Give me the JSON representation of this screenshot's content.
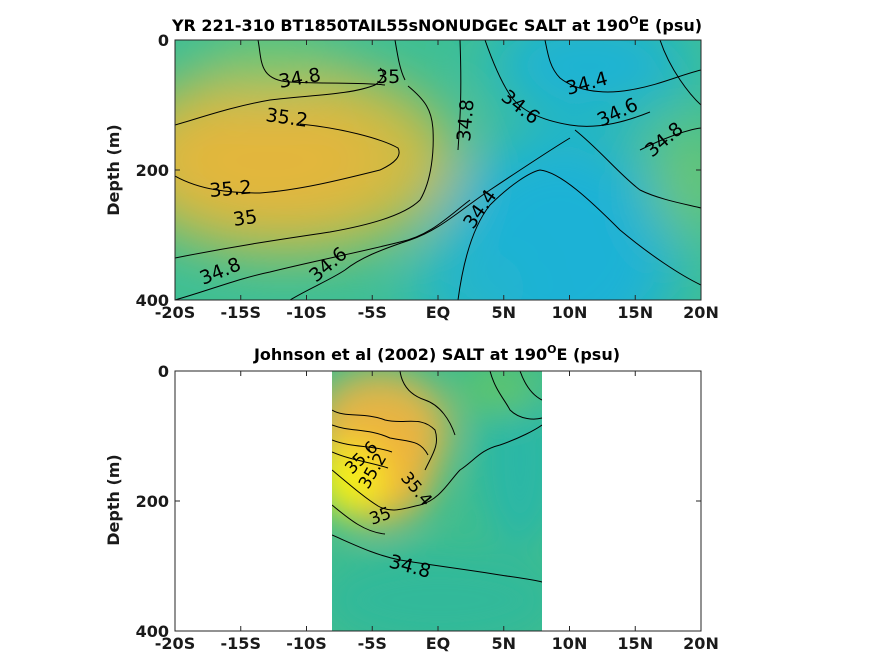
{
  "chart_data": [
    {
      "type": "contour",
      "title": "YR 221-310 BT1850TAIL55sNONUDGEc SALT at 190",
      "title_superscript": "O",
      "title_suffix": "E (psu)",
      "ylabel": "Depth (m)",
      "xlim": [
        -20,
        20
      ],
      "ylim": [
        400,
        0
      ],
      "xticks": [
        "-20S",
        "-15S",
        "-10S",
        "-5S",
        "EQ",
        "5N",
        "10N",
        "15N",
        "20N"
      ],
      "yticks": [
        "0",
        "200",
        "400"
      ],
      "contour_labels": [
        "34.8",
        "35",
        "35.2",
        "34.8",
        "34.6",
        "34.4",
        "34.6",
        "34.8",
        "35.2",
        "35",
        "34.8",
        "34.6",
        "34.4"
      ],
      "colors": {
        "low": "#1ab2dc",
        "mid": "#3dc08a",
        "high": "#e6b83a"
      }
    },
    {
      "type": "contour",
      "title": "Johnson et al (2002) SALT at 190",
      "title_superscript": "O",
      "title_suffix": "E (psu)",
      "ylabel": "Depth (m)",
      "xlim": [
        -20,
        20
      ],
      "ylim": [
        400,
        0
      ],
      "data_xrange": [
        -8,
        8
      ],
      "xticks": [
        "-20S",
        "-15S",
        "-10S",
        "-5S",
        "EQ",
        "5N",
        "10N",
        "15N",
        "20N"
      ],
      "yticks": [
        "0",
        "200",
        "400"
      ],
      "contour_labels": [
        "35.6",
        "35.4",
        "35.2",
        "35",
        "34.8"
      ],
      "colors": {
        "low": "#2ab8a0",
        "mid": "#5cc46c",
        "high": "#f7f012"
      }
    }
  ]
}
